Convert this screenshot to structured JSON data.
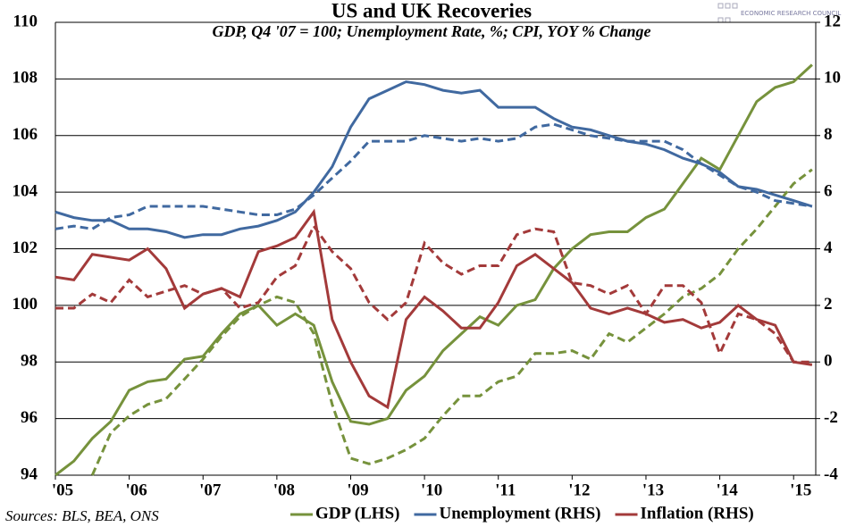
{
  "chart_data": {
    "type": "line",
    "title": "US and UK Recoveries",
    "subtitle": "GDP, Q4 '07 = 100; Unemployment Rate, %; CPI, YOY % Change",
    "source": "Sources: BLS, BEA, ONS",
    "logo": "ECONOMIC RESEARCH COUNCIL",
    "x": [
      2005,
      2005.25,
      2005.5,
      2005.75,
      2006,
      2006.25,
      2006.5,
      2006.75,
      2007,
      2007.25,
      2007.5,
      2007.75,
      2008,
      2008.25,
      2008.5,
      2008.75,
      2009,
      2009.25,
      2009.5,
      2009.75,
      2010,
      2010.25,
      2010.5,
      2010.75,
      2011,
      2011.25,
      2011.5,
      2011.75,
      2012,
      2012.25,
      2012.5,
      2012.75,
      2013,
      2013.25,
      2013.5,
      2013.75,
      2014,
      2014.25,
      2014.5,
      2014.75,
      2015,
      2015.25
    ],
    "xlim": [
      2005,
      2015.3
    ],
    "xticks": [
      {
        "value": 2005,
        "label": "'05"
      },
      {
        "value": 2006,
        "label": "'06"
      },
      {
        "value": 2007,
        "label": "'07"
      },
      {
        "value": 2008,
        "label": "'08"
      },
      {
        "value": 2009,
        "label": "'09"
      },
      {
        "value": 2010,
        "label": "'10"
      },
      {
        "value": 2011,
        "label": "'11"
      },
      {
        "value": 2012,
        "label": "'12"
      },
      {
        "value": 2013,
        "label": "'13"
      },
      {
        "value": 2014,
        "label": "'14"
      },
      {
        "value": 2015,
        "label": "'15"
      }
    ],
    "ylim": [
      94,
      110
    ],
    "yticks": [
      94,
      96,
      98,
      100,
      102,
      104,
      106,
      108,
      110
    ],
    "y2lim": [
      -4,
      12
    ],
    "y2ticks": [
      -4,
      -2,
      0,
      2,
      4,
      6,
      8,
      10,
      12
    ],
    "grid": true,
    "legend": "bottom",
    "series": [
      {
        "name": "GDP (LHS)",
        "color": "#76923c",
        "dashed": false,
        "values": [
          94.0,
          94.5,
          95.3,
          95.9,
          97.0,
          97.3,
          97.4,
          98.1,
          98.2,
          99.0,
          99.7,
          100.0,
          99.3,
          99.7,
          99.3,
          97.3,
          95.9,
          95.8,
          96.0,
          97.0,
          97.5,
          98.4,
          99.0,
          99.6,
          99.3,
          100.0,
          100.2,
          101.3,
          102.0,
          102.5,
          102.6,
          102.6,
          103.1,
          103.4,
          104.3,
          105.2,
          104.8,
          106.0,
          107.2,
          107.7,
          107.9,
          108.5
        ]
      },
      {
        "color": "#76923c",
        "dashed": true,
        "values": [
          null,
          null,
          94.0,
          95.5,
          96.1,
          96.5,
          96.7,
          97.4,
          98.1,
          98.9,
          99.6,
          100.0,
          100.3,
          100.1,
          99.0,
          96.5,
          94.6,
          94.4,
          94.6,
          94.9,
          95.3,
          96.1,
          96.8,
          96.8,
          97.3,
          97.5,
          98.3,
          98.3,
          98.4,
          98.1,
          99.0,
          98.7,
          99.2,
          99.7,
          100.3,
          100.6,
          101.1,
          102.0,
          102.7,
          103.5,
          104.3,
          104.8
        ]
      },
      {
        "name": "Unemployment (RHS)",
        "color": "#4069a0",
        "axis": "y2",
        "dashed": false,
        "values": [
          5.3,
          5.1,
          5.0,
          5.0,
          4.7,
          4.7,
          4.6,
          4.4,
          4.5,
          4.5,
          4.7,
          4.8,
          5.0,
          5.3,
          6.0,
          6.9,
          8.3,
          9.3,
          9.6,
          9.9,
          9.8,
          9.6,
          9.5,
          9.6,
          9.0,
          9.0,
          9.0,
          8.6,
          8.3,
          8.2,
          8.0,
          7.8,
          7.7,
          7.5,
          7.2,
          7.0,
          6.7,
          6.2,
          6.1,
          5.9,
          5.7,
          5.5
        ]
      },
      {
        "color": "#4069a0",
        "axis": "y2",
        "dashed": true,
        "values": [
          4.7,
          4.8,
          4.7,
          5.1,
          5.2,
          5.5,
          5.5,
          5.5,
          5.5,
          5.4,
          5.3,
          5.2,
          5.2,
          5.4,
          5.9,
          6.5,
          7.1,
          7.8,
          7.8,
          7.8,
          8.0,
          7.9,
          7.8,
          7.9,
          7.8,
          7.9,
          8.3,
          8.4,
          8.2,
          8.0,
          7.9,
          7.8,
          7.8,
          7.8,
          7.5,
          7.0,
          6.6,
          6.2,
          6.0,
          5.7,
          5.6,
          5.5
        ]
      },
      {
        "name": "Inflation (RHS)",
        "color": "#a33a3a",
        "axis": "y2",
        "dashed": false,
        "values": [
          3.0,
          2.9,
          3.8,
          3.7,
          3.6,
          4.0,
          3.3,
          1.9,
          2.4,
          2.6,
          2.3,
          3.9,
          4.1,
          4.4,
          5.3,
          1.5,
          0.0,
          -1.2,
          -1.6,
          1.5,
          2.3,
          1.8,
          1.2,
          1.2,
          2.1,
          3.4,
          3.8,
          3.3,
          2.8,
          1.9,
          1.7,
          1.9,
          1.7,
          1.4,
          1.5,
          1.2,
          1.4,
          2.0,
          1.5,
          1.3,
          0.0,
          -0.1
        ]
      },
      {
        "color": "#a33a3a",
        "axis": "y2",
        "dashed": true,
        "values": [
          1.9,
          1.9,
          2.4,
          2.1,
          2.9,
          2.3,
          2.5,
          2.7,
          2.4,
          2.6,
          1.9,
          2.1,
          3.0,
          3.4,
          4.8,
          3.9,
          3.3,
          2.1,
          1.5,
          2.1,
          4.2,
          3.5,
          3.1,
          3.4,
          3.4,
          4.5,
          4.7,
          4.6,
          2.8,
          2.7,
          2.4,
          2.7,
          1.7,
          2.7,
          2.7,
          2.1,
          0.3,
          1.7,
          1.5,
          1.0,
          0.0,
          0.0
        ]
      }
    ]
  }
}
